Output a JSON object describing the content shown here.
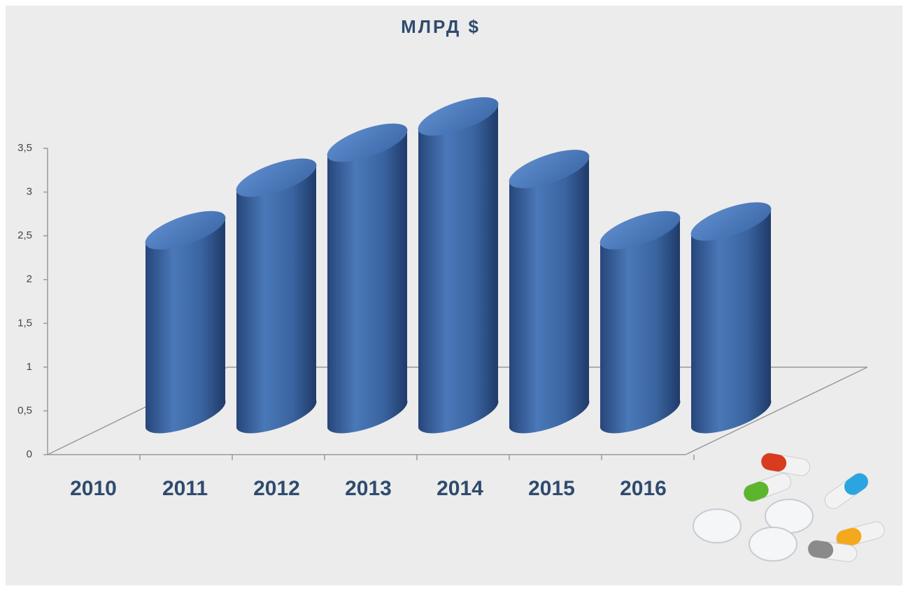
{
  "chart_data": {
    "type": "bar3d",
    "title": "МЛРД $",
    "categories": [
      "2010",
      "2011",
      "2012",
      "2013",
      "2014",
      "2015",
      "2016"
    ],
    "values": [
      2.1,
      2.7,
      3.1,
      3.4,
      2.8,
      2.1,
      2.2
    ],
    "color": "#3f6aa6",
    "ylim": [
      0,
      3.5
    ],
    "yticks": [
      0,
      {
        "value": 0.5,
        "label": "0,5"
      },
      1,
      {
        "value": 1.5,
        "label": "1,5"
      },
      2,
      {
        "value": 2.5,
        "label": "2,5"
      },
      3,
      {
        "value": 3.5,
        "label": "3,5"
      }
    ],
    "grid": false
  }
}
